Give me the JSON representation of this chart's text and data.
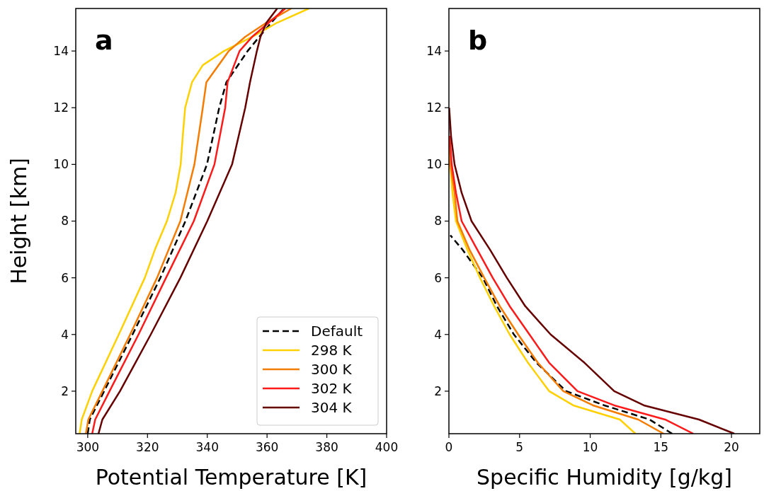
{
  "chart_data": [
    {
      "type": "line",
      "title": "a",
      "xlabel": "Potential Temperature [K]",
      "ylabel": "Height [km]",
      "xlim": [
        296,
        400
      ],
      "ylim": [
        0.5,
        15.5
      ],
      "xticks": [
        300,
        320,
        340,
        360,
        380,
        400
      ],
      "yticks": [
        2,
        4,
        6,
        8,
        10,
        12,
        14
      ],
      "legend": "bottom right",
      "series": [
        {
          "name": "Default",
          "color": "#000000",
          "line_style": "dashed",
          "x": [
            300,
            300.7,
            305.5,
            315,
            324.3,
            332.7,
            339.9,
            344,
            346.4,
            353.5,
            357.4,
            361.4,
            365.7
          ],
          "values": [
            0.5,
            1,
            2,
            4,
            6,
            8,
            10,
            12,
            12.9,
            14,
            14.5,
            15,
            15.5
          ]
        },
        {
          "name": "298 K",
          "color": "#ffd000",
          "line_style": "solid",
          "x": [
            297.3,
            298,
            301.5,
            310.4,
            319.1,
            322.5,
            326.5,
            329.4,
            331.1,
            331.8,
            332.6,
            334.9,
            338.5,
            345.6,
            355,
            363.4,
            374
          ],
          "values": [
            0.5,
            1,
            2,
            4,
            6,
            7,
            8,
            9,
            10,
            11,
            12,
            12.9,
            13.5,
            14,
            14.5,
            15,
            15.5
          ]
        },
        {
          "name": "300 K",
          "color": "#f57c00",
          "line_style": "solid",
          "x": [
            299.4,
            300.2,
            304.9,
            314.2,
            323.2,
            331,
            335.7,
            338.5,
            339.7,
            347.2,
            352.7,
            359.8,
            368.1
          ],
          "values": [
            0.5,
            1,
            2,
            4,
            6,
            8,
            10,
            12,
            12.9,
            14,
            14.5,
            15,
            15.5
          ]
        },
        {
          "name": "302 K",
          "color": "#ff1a1a",
          "line_style": "solid",
          "x": [
            301.5,
            302.5,
            307.3,
            317,
            326.2,
            335.5,
            342.4,
            346,
            346.8,
            350.8,
            355,
            360.6,
            366.1
          ],
          "values": [
            0.5,
            1,
            2,
            4,
            6,
            8,
            10,
            12,
            12.9,
            14,
            14.5,
            15,
            15.5
          ]
        },
        {
          "name": "304 K",
          "color": "#660000",
          "line_style": "solid",
          "x": [
            303.6,
            304.9,
            310.8,
            321.1,
            331,
            340,
            348.3,
            352.7,
            354.3,
            356.6,
            357.8,
            359.8,
            363.4
          ],
          "values": [
            0.5,
            1,
            2,
            4,
            6,
            8,
            10,
            12,
            12.9,
            14,
            14.5,
            15,
            15.5
          ]
        }
      ]
    },
    {
      "type": "line",
      "title": "b",
      "xlabel": "Specific Humidity [g/kg]",
      "xlim": [
        0,
        22
      ],
      "ylim": [
        0.5,
        15.5
      ],
      "xticks": [
        0,
        5,
        10,
        15,
        20
      ],
      "yticks": [
        2,
        4,
        6,
        8,
        10,
        12,
        14
      ],
      "series": [
        {
          "color": "#000000",
          "line_style": "dashed",
          "x": [
            15.8,
            14.2,
            11,
            8.3,
            6.2,
            4.6,
            3.4,
            2.4,
            0.95,
            0.1
          ],
          "values": [
            0.5,
            1,
            1.5,
            2,
            3,
            4,
            5,
            6,
            7,
            7.5
          ]
        },
        {
          "color": "#ffd000",
          "line_style": "solid",
          "x": [
            13.2,
            12.1,
            8.8,
            7.1,
            5.6,
            4.3,
            3.2,
            2.2,
            1.3,
            0.5,
            0.25,
            0.1,
            0.05
          ],
          "values": [
            0.5,
            1,
            1.5,
            2,
            3,
            4,
            5,
            6,
            7,
            8,
            9,
            10,
            11
          ]
        },
        {
          "color": "#f57c00",
          "line_style": "solid",
          "x": [
            15.2,
            13.4,
            10.2,
            8.1,
            6.3,
            4.9,
            3.6,
            2.5,
            1.45,
            0.6,
            0.4,
            0.1,
            0.05
          ],
          "values": [
            0.5,
            1,
            1.5,
            2,
            3,
            4,
            5,
            6,
            7,
            8,
            9,
            10,
            11
          ]
        },
        {
          "color": "#ff1a1a",
          "line_style": "solid",
          "x": [
            17.3,
            15.3,
            11.7,
            9.1,
            7.1,
            5.7,
            4.3,
            3.1,
            2,
            0.9,
            0.5,
            0.2,
            0.05
          ],
          "values": [
            0.5,
            1,
            1.5,
            2,
            3,
            4,
            5,
            6,
            7,
            8,
            9,
            10,
            11
          ]
        },
        {
          "color": "#660000",
          "line_style": "solid",
          "x": [
            20.2,
            17.7,
            13.8,
            11.7,
            9.6,
            7.2,
            5.4,
            4.1,
            2.9,
            1.6,
            0.9,
            0.4,
            0.15,
            0.02
          ],
          "values": [
            0.5,
            1,
            1.5,
            2,
            3,
            4,
            5,
            6,
            7,
            8,
            9,
            10,
            11,
            12
          ]
        }
      ]
    }
  ]
}
